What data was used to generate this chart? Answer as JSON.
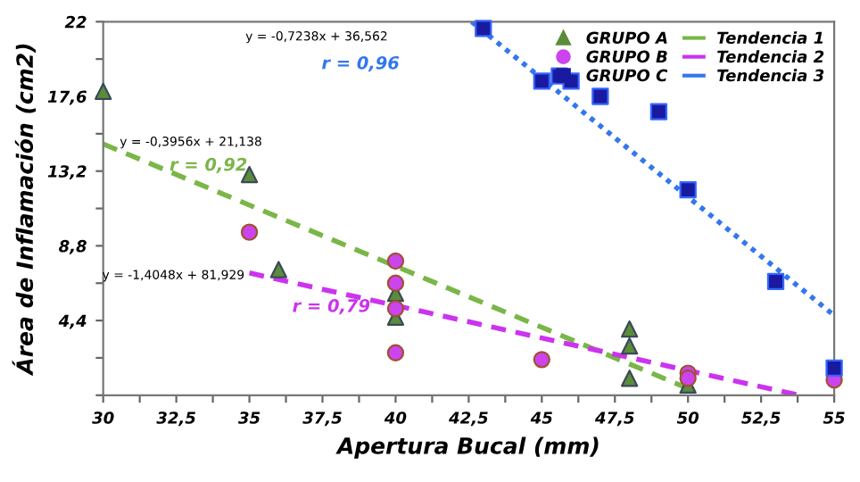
{
  "chart_data": {
    "type": "scatter",
    "xlabel": "Apertura Bucal (mm)",
    "ylabel": "Área de Inflamación (cm2)",
    "xlim": [
      30,
      55
    ],
    "ylim": [
      0,
      22
    ],
    "xticks": [
      {
        "value": 30,
        "label": "30"
      },
      {
        "value": 31.25,
        "label": null
      },
      {
        "value": 32.5,
        "label": "32,5"
      },
      {
        "value": 33.75,
        "label": null
      },
      {
        "value": 35,
        "label": "35"
      },
      {
        "value": 36.25,
        "label": null
      },
      {
        "value": 37.5,
        "label": "37,5"
      },
      {
        "value": 38.75,
        "label": null
      },
      {
        "value": 40,
        "label": "40"
      },
      {
        "value": 41.25,
        "label": null
      },
      {
        "value": 42.5,
        "label": "42,5"
      },
      {
        "value": 43.75,
        "label": null
      },
      {
        "value": 45,
        "label": "45"
      },
      {
        "value": 46.25,
        "label": null
      },
      {
        "value": 47.5,
        "label": "47,5"
      },
      {
        "value": 48.75,
        "label": null
      },
      {
        "value": 50,
        "label": "50"
      },
      {
        "value": 51.25,
        "label": null
      },
      {
        "value": 52.5,
        "label": "52,5"
      },
      {
        "value": 53.75,
        "label": null
      },
      {
        "value": 55,
        "label": "55"
      }
    ],
    "yticks": [
      {
        "value": 0,
        "label": null
      },
      {
        "value": 2.2,
        "label": null
      },
      {
        "value": 4.4,
        "label": "4,4"
      },
      {
        "value": 6.6,
        "label": null
      },
      {
        "value": 8.8,
        "label": "8,8"
      },
      {
        "value": 11,
        "label": null
      },
      {
        "value": 13.2,
        "label": "13,2"
      },
      {
        "value": 15.4,
        "label": null
      },
      {
        "value": 17.6,
        "label": "17,6"
      },
      {
        "value": 19.8,
        "label": null
      },
      {
        "value": 22,
        "label": "22"
      }
    ],
    "grid": false,
    "legend": "top right",
    "series": [
      {
        "name": "GRUPO A",
        "marker": "triangle",
        "color": "#5b8c3a",
        "x": [
          30,
          35,
          36,
          40,
          40,
          48,
          48,
          48,
          50
        ],
        "values": [
          17.9,
          13.0,
          7.4,
          6.0,
          4.6,
          3.9,
          2.9,
          1.0,
          0.6
        ]
      },
      {
        "name": "GRUPO B",
        "marker": "circle",
        "color": "#cc44ee",
        "x": [
          35,
          40,
          40,
          40,
          40,
          45,
          50,
          50,
          55
        ],
        "values": [
          9.6,
          7.9,
          6.6,
          5.1,
          2.5,
          2.1,
          1.3,
          1.0,
          0.9
        ]
      },
      {
        "name": "GRUPO C",
        "marker": "square",
        "color": "#1a1aa0",
        "x": [
          43,
          45,
          45.6,
          46,
          47,
          49,
          50,
          53,
          55
        ],
        "values": [
          21.6,
          18.5,
          18.8,
          18.5,
          17.6,
          16.7,
          12.1,
          6.7,
          1.6
        ]
      },
      {
        "name": "Tendencia 1",
        "type": "line",
        "line_style": "dashed",
        "color": "#7ab648",
        "x": [
          30,
          50
        ],
        "values": [
          14.8,
          0.4
        ]
      },
      {
        "name": "Tendencia 2",
        "type": "line",
        "line_style": "dashed",
        "color": "#cc33ee",
        "x": [
          35,
          53.8
        ],
        "values": [
          7.2,
          0
        ]
      },
      {
        "name": "Tendencia 3",
        "type": "line",
        "line_style": "dotted",
        "color": "#3377ee",
        "x": [
          42.6,
          55
        ],
        "values": [
          22,
          4.7
        ]
      }
    ],
    "annotations": [
      "y = -0,3956x + 21,138",
      "r = 0,92",
      "y = -1,4048x + 81,929",
      "r = 0,79",
      "y = -0,7238x + 36,562",
      "r = 0,96"
    ]
  }
}
